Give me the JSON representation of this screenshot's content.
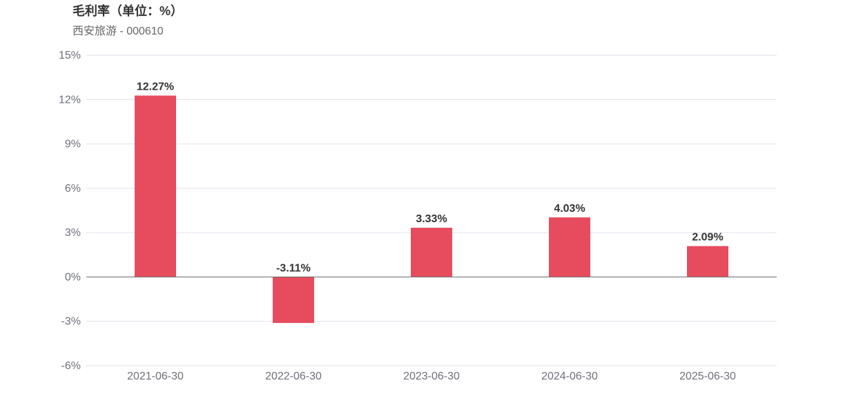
{
  "chart_data": {
    "type": "bar",
    "title": "毛利率（单位：%）",
    "subtitle": "西安旅游 - 000610",
    "categories": [
      "2021-06-30",
      "2022-06-30",
      "2023-06-30",
      "2024-06-30",
      "2025-06-30"
    ],
    "values": [
      12.27,
      -3.11,
      3.33,
      4.03,
      2.09
    ],
    "data_labels": [
      "12.27%",
      "-3.11%",
      "3.33%",
      "4.03%",
      "2.09%"
    ],
    "y_ticks": [
      15,
      12,
      9,
      6,
      3,
      0,
      -3,
      -6
    ],
    "y_tick_labels": [
      "15%",
      "12%",
      "9%",
      "6%",
      "3%",
      "0%",
      "-3%",
      "-6%"
    ],
    "ylim": [
      -6,
      15
    ],
    "grid": true,
    "bar_color": "#e64c5e",
    "xlabel": "",
    "ylabel": ""
  }
}
